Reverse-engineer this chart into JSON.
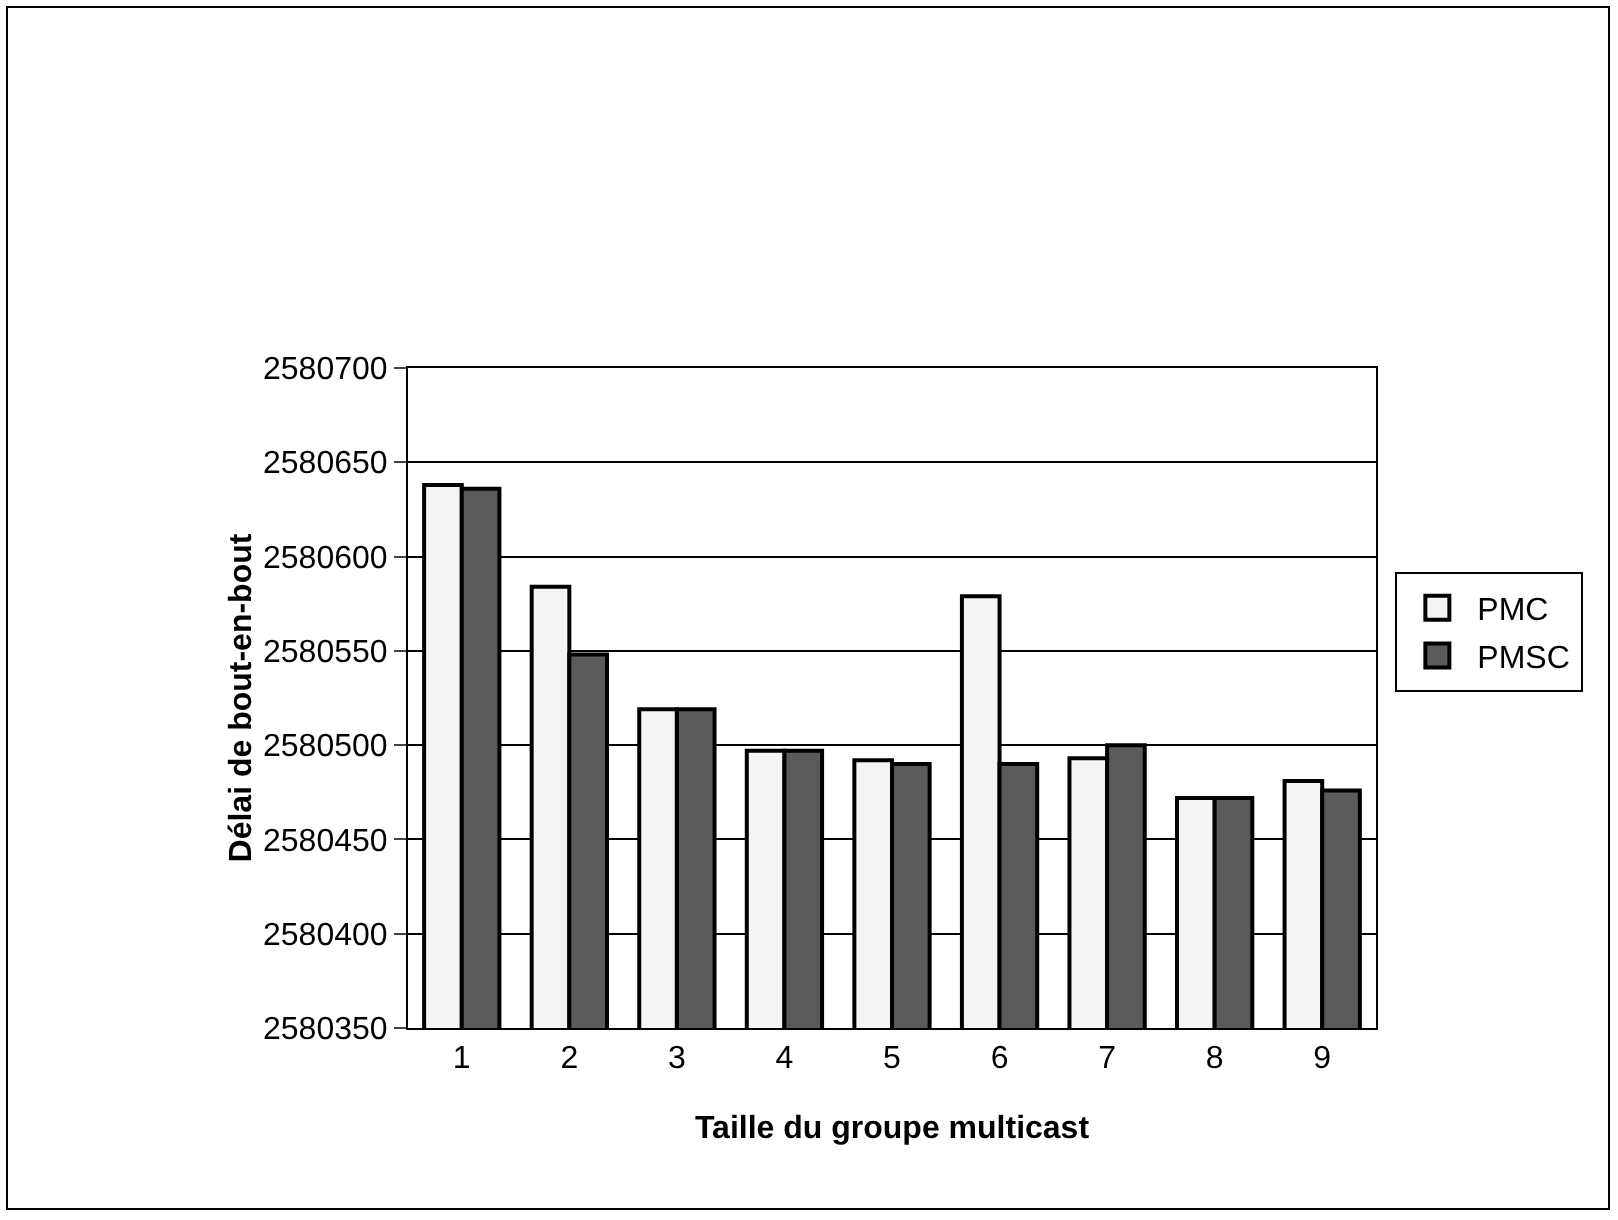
{
  "chart_data": {
    "type": "bar",
    "xlabel": "Taille du groupe multicast",
    "ylabel": "Délai de bout-en-bout",
    "categories": [
      "1",
      "2",
      "3",
      "4",
      "5",
      "6",
      "7",
      "8",
      "9"
    ],
    "series": [
      {
        "name": "PMC",
        "color": "#f4f4f4",
        "values": [
          2580638,
          2580584,
          2580519,
          2580497,
          2580492,
          2580579,
          2580493,
          2580472,
          2580481
        ]
      },
      {
        "name": "PMSC",
        "color": "#5a5a5a",
        "values": [
          2580636,
          2580548,
          2580519,
          2580497,
          2580490,
          2580490,
          2580500,
          2580472,
          2580476
        ]
      }
    ],
    "ylim": [
      2580350,
      2580700
    ],
    "yticks": [
      2580350,
      2580400,
      2580450,
      2580500,
      2580550,
      2580600,
      2580650,
      2580700
    ],
    "grid": "y",
    "legend": "right"
  }
}
